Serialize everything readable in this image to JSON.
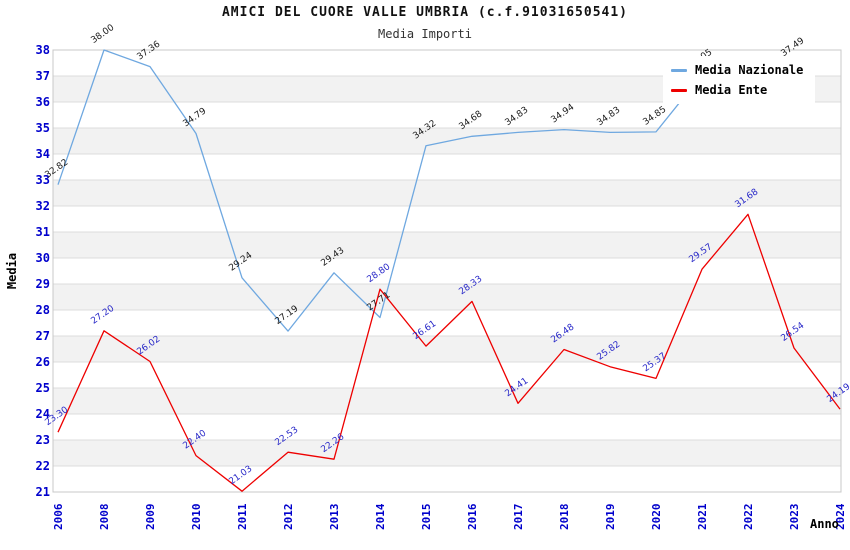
{
  "chart_data": {
    "type": "line",
    "title": "AMICI DEL CUORE VALLE UMBRIA (c.f.91031650541)",
    "subtitle": "Media Importi",
    "xlabel": "Anno",
    "ylabel": "Media",
    "ylim": [
      21,
      38
    ],
    "y_ticks": [
      21,
      22,
      23,
      24,
      25,
      26,
      27,
      28,
      29,
      30,
      31,
      32,
      33,
      34,
      35,
      36,
      37,
      38
    ],
    "categories": [
      "2006",
      "2008",
      "2009",
      "2010",
      "2011",
      "2012",
      "2013",
      "2014",
      "2015",
      "2016",
      "2017",
      "2018",
      "2019",
      "2020",
      "2021",
      "2022",
      "2023",
      "2024"
    ],
    "series": [
      {
        "name": "Media Nazionale",
        "color": "#6fa8e0",
        "label_color": "#1a1a1a",
        "values": [
          32.82,
          38.0,
          37.36,
          34.79,
          29.24,
          27.19,
          29.43,
          27.71,
          34.32,
          34.68,
          34.83,
          34.94,
          34.83,
          34.85,
          37.05,
          null,
          37.49,
          null
        ],
        "labels": [
          "32.82",
          "38.00",
          "37.36",
          "34.79",
          "29.24",
          "27.19",
          "29.43",
          "27.71",
          "34.32",
          "34.68",
          "34.83",
          "34.94",
          "34.83",
          "34.85",
          "37.05",
          "",
          "37.49",
          ""
        ]
      },
      {
        "name": "Media Ente",
        "color": "#ee0000",
        "label_color": "#2828c8",
        "values": [
          23.3,
          27.2,
          26.02,
          22.4,
          21.03,
          22.53,
          22.26,
          28.8,
          26.61,
          28.33,
          24.41,
          26.48,
          25.82,
          25.37,
          29.57,
          31.68,
          26.54,
          24.19
        ],
        "labels": [
          "23.30",
          "27.20",
          "26.02",
          "22.40",
          "21.03",
          "22.53",
          "22.26",
          "28.80",
          "26.61",
          "28.33",
          "24.41",
          "26.48",
          "25.82",
          "25.37",
          "29.57",
          "31.68",
          "26.54",
          "24.19"
        ]
      }
    ],
    "legend_position": "top-right",
    "grid": "horizontal gridlines with alternating gray bands"
  },
  "style_colors": {
    "tick_label": "#0000cc",
    "grid_line": "#dcdcdc",
    "band_fill": "#f2f2f2",
    "plot_border": "#c8c8c8",
    "axis_title": "#000000"
  }
}
